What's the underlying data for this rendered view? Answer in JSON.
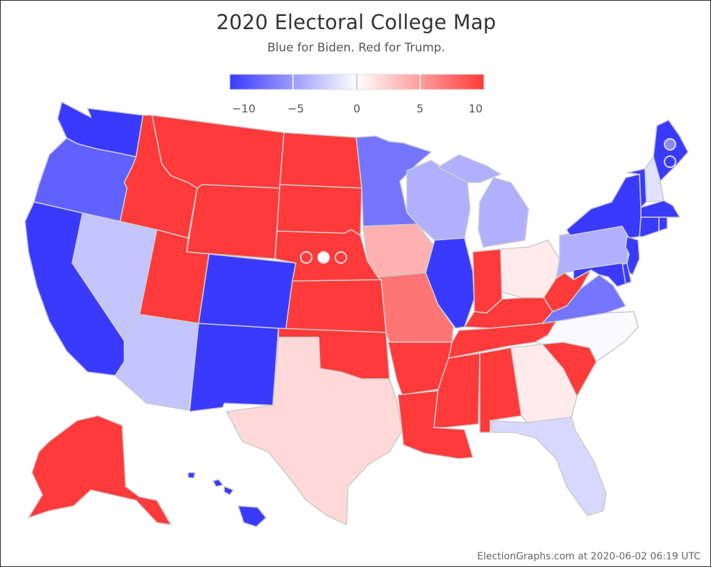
{
  "header": {
    "title": "2020 Electoral College Map",
    "subtitle": "Blue for Biden. Red for Trump."
  },
  "legend": {
    "ticks": [
      "−10",
      "−5",
      "0",
      "5",
      "10"
    ],
    "colors": {
      "biden": "#3a3aff",
      "trump": "#ff3a3a",
      "neutral": "#ffffff"
    }
  },
  "footer": {
    "credit": "ElectionGraphs.com at 2020-06-02 06:19 UTC"
  },
  "states": [
    {
      "id": "WA",
      "margin": -10
    },
    {
      "id": "OR",
      "margin": -8
    },
    {
      "id": "CA",
      "margin": -10
    },
    {
      "id": "NV",
      "margin": -3
    },
    {
      "id": "ID",
      "margin": 10
    },
    {
      "id": "MT",
      "margin": 10
    },
    {
      "id": "WY",
      "margin": 10
    },
    {
      "id": "UT",
      "margin": 10
    },
    {
      "id": "AZ",
      "margin": -3
    },
    {
      "id": "CO",
      "margin": -10
    },
    {
      "id": "NM",
      "margin": -10
    },
    {
      "id": "ND",
      "margin": 10
    },
    {
      "id": "SD",
      "margin": 10
    },
    {
      "id": "NE",
      "margin": 10
    },
    {
      "id": "KS",
      "margin": 10
    },
    {
      "id": "OK",
      "margin": 10
    },
    {
      "id": "TX",
      "margin": 2
    },
    {
      "id": "MN",
      "margin": -7
    },
    {
      "id": "IA",
      "margin": 4
    },
    {
      "id": "MO",
      "margin": 7
    },
    {
      "id": "AR",
      "margin": 10
    },
    {
      "id": "LA",
      "margin": 10
    },
    {
      "id": "WI",
      "margin": -4
    },
    {
      "id": "IL",
      "margin": -10
    },
    {
      "id": "MI",
      "margin": -4
    },
    {
      "id": "IN",
      "margin": 10
    },
    {
      "id": "OH",
      "margin": 1
    },
    {
      "id": "KY",
      "margin": 10
    },
    {
      "id": "TN",
      "margin": 10
    },
    {
      "id": "MS",
      "margin": 10
    },
    {
      "id": "AL",
      "margin": 10
    },
    {
      "id": "GA",
      "margin": 1
    },
    {
      "id": "FL",
      "margin": -2
    },
    {
      "id": "SC",
      "margin": 10
    },
    {
      "id": "NC",
      "margin": -0.3
    },
    {
      "id": "VA",
      "margin": -7
    },
    {
      "id": "WV",
      "margin": 10
    },
    {
      "id": "PA",
      "margin": -4
    },
    {
      "id": "NY",
      "margin": -10
    },
    {
      "id": "VT",
      "margin": -10
    },
    {
      "id": "NH",
      "margin": -1.5
    },
    {
      "id": "ME",
      "margin": -10
    },
    {
      "id": "MA",
      "margin": -10
    },
    {
      "id": "CT",
      "margin": -10
    },
    {
      "id": "RI",
      "margin": -10
    },
    {
      "id": "NJ",
      "margin": -10
    },
    {
      "id": "DE",
      "margin": -10
    },
    {
      "id": "MD",
      "margin": -10
    },
    {
      "id": "AK",
      "margin": 10
    },
    {
      "id": "HI",
      "margin": -10
    }
  ],
  "districts": [
    {
      "id": "NE-1",
      "margin": 10
    },
    {
      "id": "NE-2",
      "margin": 0
    },
    {
      "id": "NE-3",
      "margin": 10
    },
    {
      "id": "ME-1",
      "margin": -6
    },
    {
      "id": "ME-2",
      "margin": -10
    }
  ]
}
